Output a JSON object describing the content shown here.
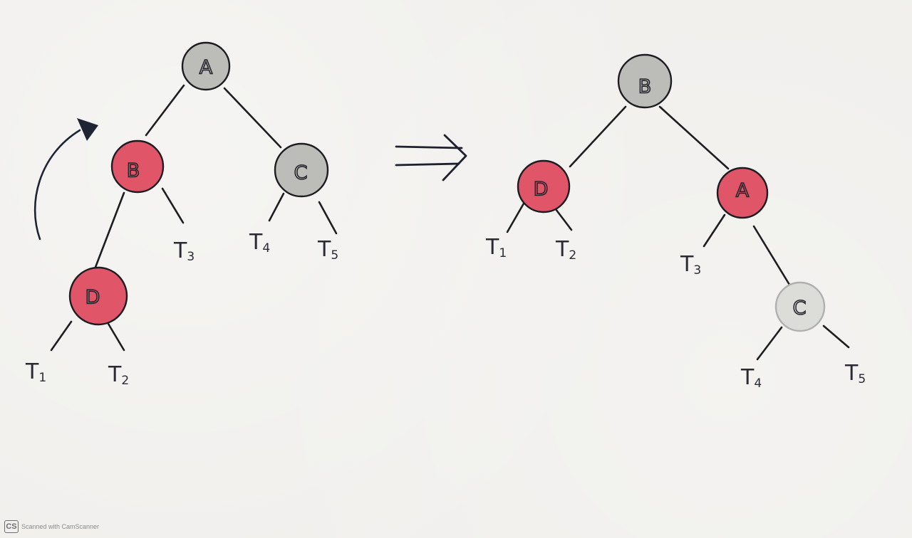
{
  "colors": {
    "red_node": "#e05567",
    "gray_node": "#bcbcb8",
    "light_node": "#dcdcd8",
    "ink": "#1d1d22"
  },
  "left_tree": {
    "nodes": {
      "A": "A",
      "B": "B",
      "C": "C",
      "D": "D"
    },
    "leaves": {
      "T1": {
        "main": "T",
        "sub": "1"
      },
      "T2": {
        "main": "T",
        "sub": "2"
      },
      "T3": {
        "main": "T",
        "sub": "3"
      },
      "T4": {
        "main": "T",
        "sub": "4"
      },
      "T5": {
        "main": "T",
        "sub": "5"
      }
    }
  },
  "right_tree": {
    "nodes": {
      "B": "B",
      "D": "D",
      "A": "A",
      "C": "C"
    },
    "leaves": {
      "T1": {
        "main": "T",
        "sub": "1"
      },
      "T2": {
        "main": "T",
        "sub": "2"
      },
      "T3": {
        "main": "T",
        "sub": "3"
      },
      "T4": {
        "main": "T",
        "sub": "4"
      },
      "T5": {
        "main": "T",
        "sub": "5"
      }
    }
  },
  "icons": {
    "rotation_arrow": "rotation-arrow-icon",
    "implies_arrow": "implies-arrow-icon"
  },
  "footer": {
    "logo": "CS",
    "text": "Scanned with CamScanner"
  }
}
